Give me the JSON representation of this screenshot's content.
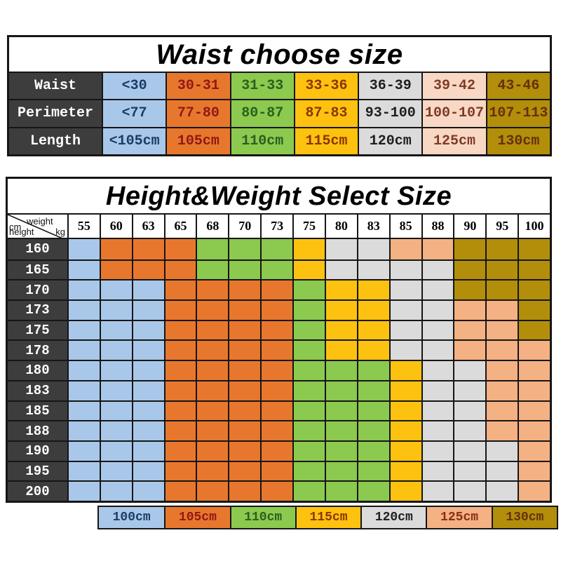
{
  "palette": {
    "blue": "#A9C8E9",
    "orange": "#E8772E",
    "green": "#8CC94F",
    "yellow": "#FDC20F",
    "gray": "#DBDBDB",
    "peach": "#F4B183",
    "peach_light": "#F8D8C4",
    "gold": "#B28E0B",
    "header_dark": "#3D3D3D",
    "border": "#161616"
  },
  "text_on": {
    "blue": "#1A3C66",
    "orange": "#8E1A12",
    "green": "#2A5F1E",
    "yellow": "#8C3500",
    "gray": "#1E1E1E",
    "peach": "#8A2D16",
    "peach_light": "#7E3B26",
    "gold": "#66300A"
  },
  "waist_table": {
    "title": "Waist choose size",
    "column_colors": [
      "blue",
      "orange",
      "green",
      "yellow",
      "gray",
      "peach_light",
      "gold"
    ],
    "rows": [
      {
        "label": "Waist",
        "values": [
          "<30",
          "30-31",
          "31-33",
          "33-36",
          "36-39",
          "39-42",
          "43-46"
        ]
      },
      {
        "label": "Perimeter",
        "values": [
          "<77",
          "77-80",
          "80-87",
          "87-83",
          "93-100",
          "100-107",
          "107-113"
        ]
      },
      {
        "label": "Length",
        "values": [
          "<105cm",
          "105cm",
          "110cm",
          "115cm",
          "120cm",
          "125cm",
          "130cm"
        ]
      }
    ]
  },
  "hw_table": {
    "title": "Height&Weight Select Size",
    "corner": {
      "weight": "weight",
      "kg": "kg",
      "cm": "cm",
      "height": "height"
    },
    "weights": [
      "55",
      "60",
      "63",
      "65",
      "68",
      "70",
      "73",
      "75",
      "80",
      "83",
      "85",
      "88",
      "90",
      "95",
      "100"
    ],
    "rows": [
      {
        "height": "160",
        "cells": [
          "blue",
          "orange",
          "orange",
          "orange",
          "green",
          "green",
          "green",
          "yellow",
          "gray",
          "gray",
          "peach",
          "peach",
          "gold",
          "gold",
          "gold"
        ]
      },
      {
        "height": "165",
        "cells": [
          "blue",
          "orange",
          "orange",
          "orange",
          "green",
          "green",
          "green",
          "yellow",
          "gray",
          "gray",
          "gray",
          "gray",
          "gold",
          "gold",
          "gold"
        ]
      },
      {
        "height": "170",
        "cells": [
          "blue",
          "blue",
          "blue",
          "orange",
          "orange",
          "orange",
          "orange",
          "green",
          "yellow",
          "yellow",
          "gray",
          "gray",
          "gold",
          "gold",
          "gold"
        ]
      },
      {
        "height": "173",
        "cells": [
          "blue",
          "blue",
          "blue",
          "orange",
          "orange",
          "orange",
          "orange",
          "green",
          "yellow",
          "yellow",
          "gray",
          "gray",
          "peach",
          "peach",
          "gold"
        ]
      },
      {
        "height": "175",
        "cells": [
          "blue",
          "blue",
          "blue",
          "orange",
          "orange",
          "orange",
          "orange",
          "green",
          "yellow",
          "yellow",
          "gray",
          "gray",
          "peach",
          "peach",
          "gold"
        ]
      },
      {
        "height": "178",
        "cells": [
          "blue",
          "blue",
          "blue",
          "orange",
          "orange",
          "orange",
          "orange",
          "green",
          "yellow",
          "yellow",
          "gray",
          "gray",
          "peach",
          "peach",
          "peach"
        ]
      },
      {
        "height": "180",
        "cells": [
          "blue",
          "blue",
          "blue",
          "orange",
          "orange",
          "orange",
          "orange",
          "green",
          "green",
          "green",
          "yellow",
          "gray",
          "gray",
          "peach",
          "peach"
        ]
      },
      {
        "height": "183",
        "cells": [
          "blue",
          "blue",
          "blue",
          "orange",
          "orange",
          "orange",
          "orange",
          "green",
          "green",
          "green",
          "yellow",
          "gray",
          "gray",
          "peach",
          "peach"
        ]
      },
      {
        "height": "185",
        "cells": [
          "blue",
          "blue",
          "blue",
          "orange",
          "orange",
          "orange",
          "orange",
          "green",
          "green",
          "green",
          "yellow",
          "gray",
          "gray",
          "peach",
          "peach"
        ]
      },
      {
        "height": "188",
        "cells": [
          "blue",
          "blue",
          "blue",
          "orange",
          "orange",
          "orange",
          "orange",
          "green",
          "green",
          "green",
          "yellow",
          "gray",
          "gray",
          "peach",
          "peach"
        ]
      },
      {
        "height": "190",
        "cells": [
          "blue",
          "blue",
          "blue",
          "orange",
          "orange",
          "orange",
          "orange",
          "green",
          "green",
          "green",
          "yellow",
          "gray",
          "gray",
          "gray",
          "peach"
        ]
      },
      {
        "height": "195",
        "cells": [
          "blue",
          "blue",
          "blue",
          "orange",
          "orange",
          "orange",
          "orange",
          "green",
          "green",
          "green",
          "yellow",
          "gray",
          "gray",
          "gray",
          "peach"
        ]
      },
      {
        "height": "200",
        "cells": [
          "blue",
          "blue",
          "blue",
          "orange",
          "orange",
          "orange",
          "orange",
          "green",
          "green",
          "green",
          "yellow",
          "gray",
          "gray",
          "gray",
          "peach"
        ]
      }
    ],
    "legend": [
      {
        "label": "100cm",
        "color": "blue"
      },
      {
        "label": "105cm",
        "color": "orange"
      },
      {
        "label": "110cm",
        "color": "green"
      },
      {
        "label": "115cm",
        "color": "yellow"
      },
      {
        "label": "120cm",
        "color": "gray"
      },
      {
        "label": "125cm",
        "color": "peach"
      },
      {
        "label": "130cm",
        "color": "gold"
      }
    ]
  },
  "chart_data": [
    {
      "type": "table",
      "title": "Waist choose size",
      "row_headers": [
        "Waist",
        "Perimeter",
        "Length"
      ],
      "rows": [
        [
          "<30",
          "30-31",
          "31-33",
          "33-36",
          "36-39",
          "39-42",
          "43-46"
        ],
        [
          "<77",
          "77-80",
          "80-87",
          "87-83",
          "93-100",
          "100-107",
          "107-113"
        ],
        [
          "<105cm",
          "105cm",
          "110cm",
          "115cm",
          "120cm",
          "125cm",
          "130cm"
        ]
      ]
    },
    {
      "type": "heatmap",
      "title": "Height&Weight Select Size",
      "xlabel": "weight kg",
      "ylabel": "height cm",
      "x": [
        55,
        60,
        63,
        65,
        68,
        70,
        73,
        75,
        80,
        83,
        85,
        88,
        90,
        95,
        100
      ],
      "y": [
        160,
        165,
        170,
        173,
        175,
        178,
        180,
        183,
        185,
        188,
        190,
        195,
        200
      ],
      "values": [
        [
          "100cm",
          "105cm",
          "105cm",
          "105cm",
          "110cm",
          "110cm",
          "110cm",
          "115cm",
          "120cm",
          "120cm",
          "125cm",
          "125cm",
          "130cm",
          "130cm",
          "130cm"
        ],
        [
          "100cm",
          "105cm",
          "105cm",
          "105cm",
          "110cm",
          "110cm",
          "110cm",
          "115cm",
          "120cm",
          "120cm",
          "120cm",
          "120cm",
          "130cm",
          "130cm",
          "130cm"
        ],
        [
          "100cm",
          "100cm",
          "100cm",
          "105cm",
          "105cm",
          "105cm",
          "105cm",
          "110cm",
          "115cm",
          "115cm",
          "120cm",
          "120cm",
          "130cm",
          "130cm",
          "130cm"
        ],
        [
          "100cm",
          "100cm",
          "100cm",
          "105cm",
          "105cm",
          "105cm",
          "105cm",
          "110cm",
          "115cm",
          "115cm",
          "120cm",
          "120cm",
          "125cm",
          "125cm",
          "130cm"
        ],
        [
          "100cm",
          "100cm",
          "100cm",
          "105cm",
          "105cm",
          "105cm",
          "105cm",
          "110cm",
          "115cm",
          "115cm",
          "120cm",
          "120cm",
          "125cm",
          "125cm",
          "130cm"
        ],
        [
          "100cm",
          "100cm",
          "100cm",
          "105cm",
          "105cm",
          "105cm",
          "105cm",
          "110cm",
          "115cm",
          "115cm",
          "120cm",
          "120cm",
          "125cm",
          "125cm",
          "125cm"
        ],
        [
          "100cm",
          "100cm",
          "100cm",
          "105cm",
          "105cm",
          "105cm",
          "105cm",
          "110cm",
          "110cm",
          "110cm",
          "115cm",
          "120cm",
          "120cm",
          "125cm",
          "125cm"
        ],
        [
          "100cm",
          "100cm",
          "100cm",
          "105cm",
          "105cm",
          "105cm",
          "105cm",
          "110cm",
          "110cm",
          "110cm",
          "115cm",
          "120cm",
          "120cm",
          "125cm",
          "125cm"
        ],
        [
          "100cm",
          "100cm",
          "100cm",
          "105cm",
          "105cm",
          "105cm",
          "105cm",
          "110cm",
          "110cm",
          "110cm",
          "115cm",
          "120cm",
          "120cm",
          "125cm",
          "125cm"
        ],
        [
          "100cm",
          "100cm",
          "100cm",
          "105cm",
          "105cm",
          "105cm",
          "105cm",
          "110cm",
          "110cm",
          "110cm",
          "115cm",
          "120cm",
          "120cm",
          "125cm",
          "125cm"
        ],
        [
          "100cm",
          "100cm",
          "100cm",
          "105cm",
          "105cm",
          "105cm",
          "105cm",
          "110cm",
          "110cm",
          "110cm",
          "115cm",
          "120cm",
          "120cm",
          "120cm",
          "125cm"
        ],
        [
          "100cm",
          "100cm",
          "100cm",
          "105cm",
          "105cm",
          "105cm",
          "105cm",
          "110cm",
          "110cm",
          "110cm",
          "115cm",
          "120cm",
          "120cm",
          "120cm",
          "125cm"
        ],
        [
          "100cm",
          "100cm",
          "100cm",
          "105cm",
          "105cm",
          "105cm",
          "105cm",
          "110cm",
          "110cm",
          "110cm",
          "115cm",
          "120cm",
          "120cm",
          "120cm",
          "125cm"
        ]
      ],
      "legend": {
        "100cm": "blue",
        "105cm": "orange",
        "110cm": "green",
        "115cm": "yellow",
        "120cm": "gray",
        "125cm": "peach",
        "130cm": "gold"
      },
      "legend_position": "bottom"
    }
  ]
}
